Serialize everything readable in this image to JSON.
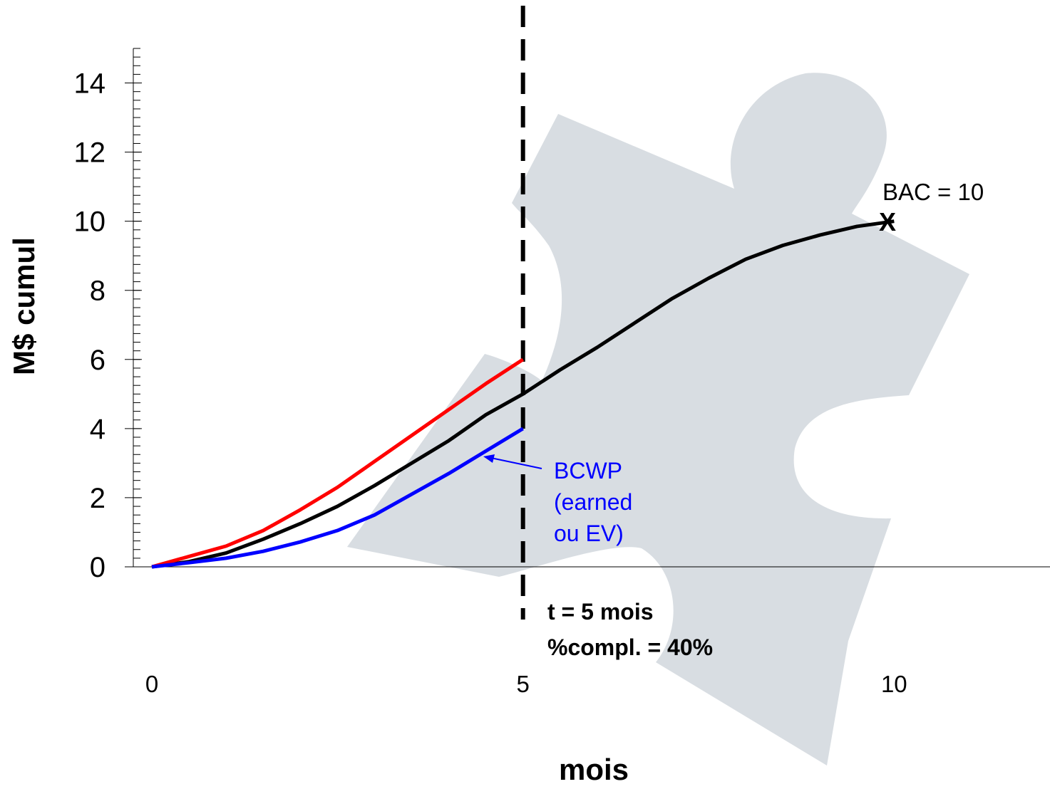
{
  "chart_data": {
    "type": "line",
    "xlabel": "mois",
    "ylabel": "M$ cumul",
    "xlim": [
      -0.25,
      12.1
    ],
    "ylim": [
      0,
      15
    ],
    "xticks": [
      0,
      5,
      10
    ],
    "yticks": [
      0,
      2,
      4,
      6,
      8,
      10,
      12,
      14
    ],
    "yminor_step": 0.25,
    "vline": 5,
    "series": [
      {
        "color": "#000000",
        "x": [
          0,
          0.5,
          1,
          1.5,
          2,
          2.5,
          3,
          3.5,
          4,
          4.5,
          5,
          5.5,
          6,
          6.5,
          7,
          7.5,
          8,
          8.5,
          9,
          9.5,
          10
        ],
        "values": [
          0,
          0.15,
          0.4,
          0.8,
          1.25,
          1.75,
          2.35,
          3.0,
          3.65,
          4.4,
          5.0,
          5.7,
          6.35,
          7.05,
          7.75,
          8.35,
          8.9,
          9.3,
          9.6,
          9.85,
          10
        ]
      },
      {
        "color": "#ff0000",
        "x": [
          0,
          0.5,
          1,
          1.5,
          2,
          2.5,
          3,
          3.5,
          4,
          4.5,
          5
        ],
        "values": [
          0,
          0.3,
          0.6,
          1.05,
          1.65,
          2.3,
          3.05,
          3.8,
          4.55,
          5.3,
          6
        ]
      },
      {
        "color": "#0000ff",
        "x": [
          0,
          0.5,
          1,
          1.5,
          2,
          2.5,
          3,
          3.5,
          4,
          4.5,
          5
        ],
        "values": [
          0,
          0.12,
          0.25,
          0.45,
          0.72,
          1.05,
          1.5,
          2.1,
          2.7,
          3.35,
          4.0
        ]
      }
    ],
    "annotations": {
      "bac": "BAC = 10",
      "bac_marker": "X",
      "bcwp": [
        "BCWP",
        "(earned",
        "ou EV)"
      ],
      "time": [
        "t = 5 mois",
        "%compl. = 40%"
      ]
    }
  }
}
